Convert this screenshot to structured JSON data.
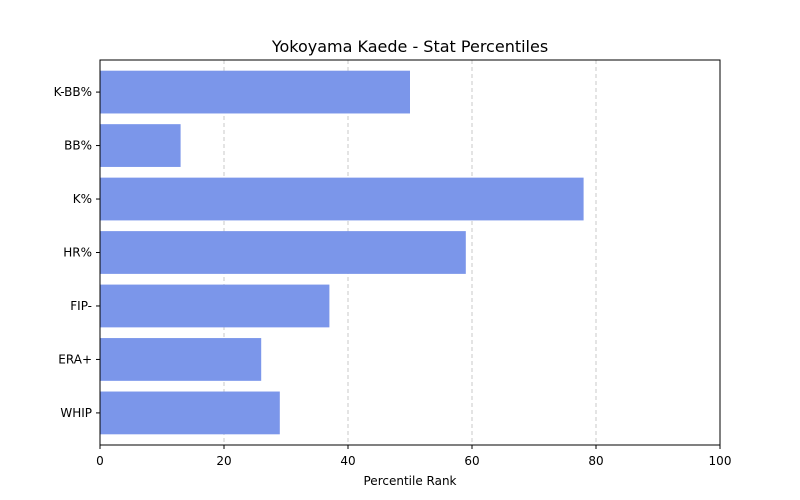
{
  "chart_data": {
    "type": "bar",
    "orientation": "horizontal",
    "title": "Yokoyama Kaede - Stat Percentiles",
    "xlabel": "Percentile Rank",
    "ylabel": "",
    "categories": [
      "K-BB%",
      "BB%",
      "K%",
      "HR%",
      "FIP-",
      "ERA+",
      "WHIP"
    ],
    "values": [
      50,
      13,
      78,
      59,
      37,
      26,
      29
    ],
    "xlim": [
      0,
      100
    ],
    "xticks": [
      0,
      20,
      40,
      60,
      80,
      100
    ],
    "grid": "x-dashed",
    "bar_color": "#7b96ea"
  }
}
